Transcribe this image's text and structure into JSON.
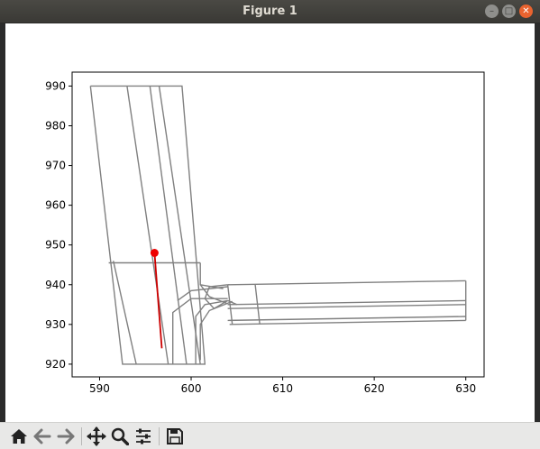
{
  "window": {
    "title": "Figure 1",
    "controls": [
      "minimize",
      "maximize",
      "close"
    ]
  },
  "toolbar": {
    "buttons": [
      "home-icon",
      "back-arrow-icon",
      "forward-arrow-icon",
      "pan-icon",
      "zoom-icon",
      "configure-subplots-icon",
      "save-icon"
    ]
  },
  "chart_data": {
    "type": "line",
    "title": "",
    "xlabel": "",
    "ylabel": "",
    "xlim": [
      587,
      632
    ],
    "ylim": [
      916.8,
      993.5
    ],
    "xticks": [
      590,
      600,
      610,
      620,
      630
    ],
    "yticks": [
      920,
      930,
      940,
      950,
      960,
      970,
      980,
      990
    ],
    "grid": false,
    "road_color": "#808080",
    "path_color": "#cc0000",
    "road_lines": [
      [
        [
          589,
          990
        ],
        [
          592.5,
          920
        ],
        [
          601.5,
          920
        ],
        [
          599,
          990
        ],
        [
          589,
          990
        ]
      ],
      [
        [
          593,
          990
        ],
        [
          597.5,
          920
        ]
      ],
      [
        [
          595.5,
          990
        ],
        [
          599.5,
          920
        ]
      ],
      [
        [
          596.5,
          990
        ],
        [
          601,
          920
        ]
      ],
      [
        [
          591,
          945.5
        ],
        [
          601,
          945.5
        ]
      ],
      [
        [
          594,
          920
        ],
        [
          591.5,
          946
        ]
      ],
      [
        [
          604,
          940
        ],
        [
          630,
          941
        ]
      ],
      [
        [
          604,
          935
        ],
        [
          630,
          936
        ]
      ],
      [
        [
          604,
          934
        ],
        [
          630,
          935
        ]
      ],
      [
        [
          604,
          931
        ],
        [
          630,
          932
        ]
      ],
      [
        [
          604.2,
          930
        ],
        [
          630,
          931
        ]
      ],
      [
        [
          604,
          940
        ],
        [
          604.5,
          930
        ]
      ],
      [
        [
          607,
          940
        ],
        [
          607.5,
          930
        ]
      ],
      [
        [
          630,
          941
        ],
        [
          630,
          931
        ]
      ],
      [
        [
          601,
          945.5
        ],
        [
          601,
          940
        ],
        [
          602,
          937
        ],
        [
          604,
          935.2
        ]
      ],
      [
        [
          598,
          920
        ],
        [
          598,
          933
        ],
        [
          600,
          936.5
        ],
        [
          604,
          936.5
        ]
      ],
      [
        [
          600.5,
          920
        ],
        [
          600.5,
          932
        ],
        [
          601.5,
          935
        ],
        [
          604,
          936
        ]
      ],
      [
        [
          601,
          921
        ],
        [
          601,
          930
        ],
        [
          602,
          933.5
        ],
        [
          604.5,
          935.8
        ]
      ],
      [
        [
          598.5,
          936
        ],
        [
          600,
          938.5
        ],
        [
          604,
          939.5
        ]
      ],
      [
        [
          604,
          936
        ],
        [
          602.5,
          934
        ],
        [
          601.5,
          936.5
        ],
        [
          602,
          939.5
        ],
        [
          604,
          940
        ]
      ],
      [
        [
          604,
          936
        ],
        [
          605,
          935
        ]
      ],
      [
        [
          601,
          940
        ],
        [
          603.5,
          939
        ]
      ]
    ],
    "series": [
      {
        "x": [
          596,
          596.8
        ],
        "y": [
          948,
          924
        ]
      }
    ],
    "markers": [
      {
        "x": 596,
        "y": 948
      }
    ]
  }
}
